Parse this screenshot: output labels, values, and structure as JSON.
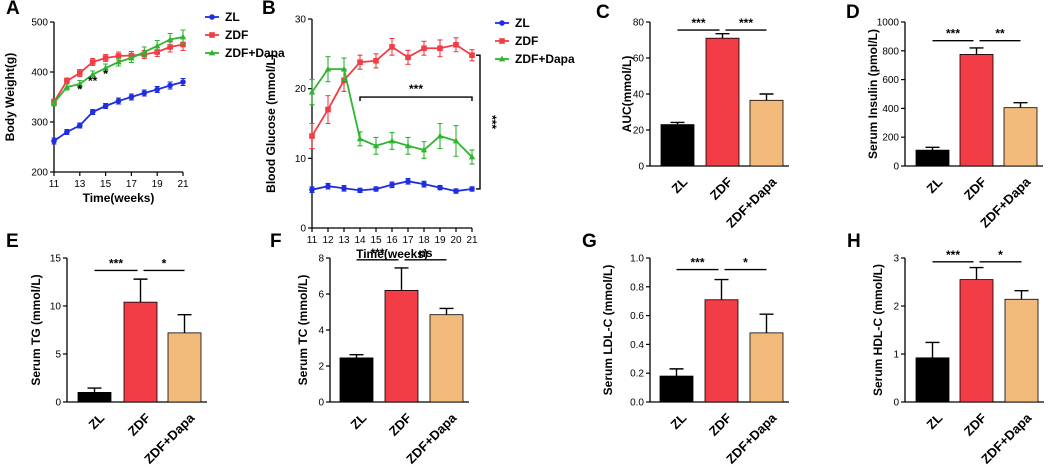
{
  "colors": {
    "ZL": "#1f2fe0",
    "ZDF": "#f23c46",
    "ZDF+Dapa": "#2fb52f",
    "bar_ZL": "#000000",
    "bar_ZDF": "#f23c46",
    "bar_ZDF+Dapa": "#f2bb7c"
  },
  "chart_data": [
    {
      "panel": "A",
      "type": "line",
      "xlabel": "Time(weeks)",
      "ylabel": "Body Weight(g)",
      "xlim": [
        11,
        21
      ],
      "ylim": [
        200,
        500
      ],
      "xticks": [
        11,
        13,
        15,
        17,
        19,
        21
      ],
      "yticks": [
        200,
        300,
        400,
        500
      ],
      "x": [
        11,
        12,
        13,
        14,
        15,
        16,
        17,
        18,
        19,
        20,
        21
      ],
      "series": [
        {
          "name": "ZL",
          "values": [
            262,
            280,
            293,
            320,
            332,
            342,
            350,
            358,
            365,
            373,
            380
          ],
          "err": [
            6,
            5,
            5,
            5,
            5,
            6,
            6,
            6,
            6,
            7,
            7
          ]
        },
        {
          "name": "ZDF",
          "values": [
            340,
            382,
            398,
            420,
            428,
            432,
            433,
            435,
            440,
            450,
            455
          ],
          "err": [
            6,
            6,
            7,
            7,
            7,
            8,
            8,
            8,
            9,
            10,
            12
          ]
        },
        {
          "name": "ZDF+Dapa",
          "values": [
            338,
            370,
            376,
            395,
            408,
            420,
            428,
            440,
            452,
            465,
            470
          ],
          "err": [
            6,
            6,
            7,
            7,
            8,
            8,
            9,
            10,
            11,
            12,
            14
          ]
        }
      ],
      "annotations": [
        {
          "x": 13,
          "y": 365,
          "text": "*"
        },
        {
          "x": 14,
          "y": 382,
          "text": "**"
        },
        {
          "x": 15,
          "y": 396,
          "text": "*"
        }
      ],
      "legend": [
        "ZL",
        "ZDF",
        "ZDF+Dapa"
      ]
    },
    {
      "panel": "B",
      "type": "line",
      "xlabel": "Time(weeks)",
      "ylabel": "Blood Glucose (mmol/L)",
      "xlim": [
        11,
        21
      ],
      "ylim": [
        0,
        30
      ],
      "xticks": [
        11,
        12,
        13,
        14,
        15,
        16,
        17,
        18,
        19,
        20,
        21
      ],
      "yticks": [
        0,
        10,
        20,
        30
      ],
      "x": [
        11,
        12,
        13,
        14,
        15,
        16,
        17,
        18,
        19,
        20,
        21
      ],
      "series": [
        {
          "name": "ZL",
          "values": [
            5.5,
            6.0,
            5.7,
            5.4,
            5.6,
            6.2,
            6.7,
            6.3,
            5.8,
            5.3,
            5.6
          ],
          "err": [
            0.4,
            0.4,
            0.4,
            0.3,
            0.3,
            0.4,
            0.4,
            0.4,
            0.3,
            0.3,
            0.3
          ]
        },
        {
          "name": "ZDF",
          "values": [
            13.2,
            17.0,
            21.2,
            23.8,
            24.0,
            26.0,
            24.5,
            25.8,
            25.8,
            26.3,
            24.8
          ],
          "err": [
            1.8,
            2.0,
            1.6,
            1.0,
            1.0,
            1.2,
            1.0,
            1.0,
            1.2,
            1.0,
            0.8
          ]
        },
        {
          "name": "ZDF+Dapa",
          "values": [
            19.5,
            22.8,
            22.8,
            12.8,
            11.8,
            12.5,
            11.8,
            11.2,
            13.2,
            12.5,
            10.2
          ],
          "err": [
            1.8,
            1.8,
            1.6,
            1.0,
            1.2,
            1.2,
            1.2,
            1.2,
            1.8,
            2.2,
            1.0
          ]
        }
      ],
      "annotations": [
        {
          "text": "***",
          "type": "bracket",
          "from_x": 14,
          "to_x": 21,
          "y": 18.8
        },
        {
          "text": "***",
          "type": "vertical-bracket",
          "y_from": 5.6,
          "y_to": 24.8
        }
      ],
      "legend": [
        "ZL",
        "ZDF",
        "ZDF+Dapa"
      ]
    },
    {
      "panel": "C",
      "type": "bar",
      "ylabel": "AUC(mmol/L)",
      "categories": [
        "ZL",
        "ZDF",
        "ZDF+Dapa"
      ],
      "values": [
        23,
        71,
        36.5
      ],
      "err": [
        1.2,
        2.5,
        3.5
      ],
      "ylim": [
        0,
        80
      ],
      "yticks": [
        0,
        20,
        40,
        60,
        80
      ],
      "sig": [
        {
          "from": 0,
          "to": 1,
          "text": "***",
          "y": 75.5
        },
        {
          "from": 1,
          "to": 2,
          "text": "***",
          "y": 75.5
        }
      ]
    },
    {
      "panel": "D",
      "type": "bar",
      "ylabel": "Serum Insulin (pmol/L)",
      "categories": [
        "ZL",
        "ZDF",
        "ZDF+Dapa"
      ],
      "values": [
        110,
        775,
        405
      ],
      "err": [
        20,
        45,
        35
      ],
      "ylim": [
        0,
        1000
      ],
      "yticks": [
        0,
        200,
        400,
        600,
        800,
        1000
      ],
      "sig": [
        {
          "from": 0,
          "to": 1,
          "text": "***",
          "y": 870
        },
        {
          "from": 1,
          "to": 2,
          "text": "**",
          "y": 870
        }
      ]
    },
    {
      "panel": "E",
      "type": "bar",
      "ylabel": "Serum TG (mmol/L)",
      "categories": [
        "ZL",
        "ZDF",
        "ZDF+Dapa"
      ],
      "values": [
        1.0,
        10.4,
        7.2
      ],
      "err": [
        0.45,
        2.4,
        1.9
      ],
      "ylim": [
        0,
        15
      ],
      "yticks": [
        0,
        5,
        10,
        15
      ],
      "sig": [
        {
          "from": 0,
          "to": 1,
          "text": "***",
          "y": 13.7
        },
        {
          "from": 1,
          "to": 2,
          "text": "*",
          "y": 13.7
        }
      ]
    },
    {
      "panel": "F",
      "type": "bar",
      "ylabel": "Serum TC (mmol/L)",
      "categories": [
        "ZL",
        "ZDF",
        "ZDF+Dapa"
      ],
      "values": [
        2.45,
        6.2,
        4.85
      ],
      "err": [
        0.18,
        1.25,
        0.35
      ],
      "ylim": [
        0,
        8
      ],
      "yticks": [
        0,
        2,
        4,
        6,
        8
      ],
      "sig": [
        {
          "from": 0,
          "to": 1,
          "text": "***",
          "y": 7.9
        },
        {
          "from": 1,
          "to": 2,
          "text": "ns",
          "y": 7.9
        }
      ]
    },
    {
      "panel": "G",
      "type": "bar",
      "ylabel": "Serum LDL-C (mmol/L)",
      "categories": [
        "ZL",
        "ZDF",
        "ZDF+Dapa"
      ],
      "values": [
        0.18,
        0.71,
        0.48
      ],
      "err": [
        0.05,
        0.14,
        0.13
      ],
      "ylim": [
        0,
        1.0
      ],
      "yticks": [
        0.0,
        0.2,
        0.4,
        0.6,
        0.8,
        1.0
      ],
      "sig": [
        {
          "from": 0,
          "to": 1,
          "text": "***",
          "y": 0.92
        },
        {
          "from": 1,
          "to": 2,
          "text": "*",
          "y": 0.92
        }
      ]
    },
    {
      "panel": "H",
      "type": "bar",
      "ylabel": "Serum HDL-C (mmol/L)",
      "categories": [
        "ZL",
        "ZDF",
        "ZDF+Dapa"
      ],
      "values": [
        0.92,
        2.55,
        2.14
      ],
      "err": [
        0.32,
        0.25,
        0.18
      ],
      "ylim": [
        0,
        3
      ],
      "yticks": [
        0,
        1,
        2,
        3
      ],
      "sig": [
        {
          "from": 0,
          "to": 1,
          "text": "***",
          "y": 2.92
        },
        {
          "from": 1,
          "to": 2,
          "text": "*",
          "y": 2.92
        }
      ]
    }
  ]
}
